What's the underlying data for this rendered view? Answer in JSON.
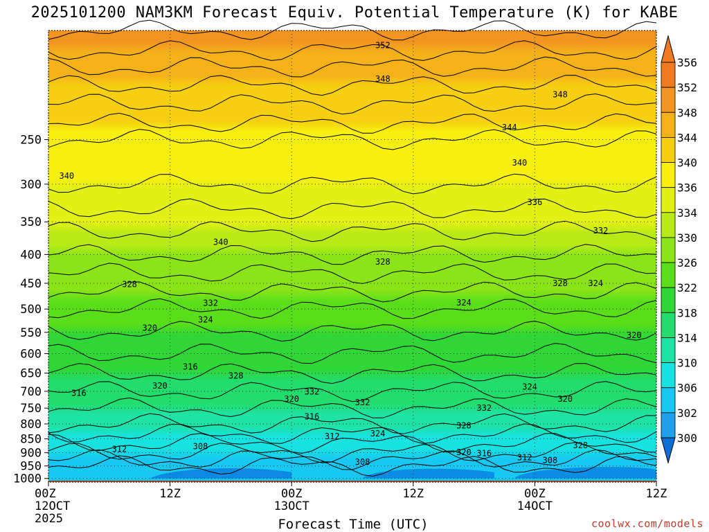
{
  "chart_data": {
    "type": "heatmap",
    "title": "2025101200 NAM3KM Forecast Equiv. Potential Temperature (K) for KABE",
    "xlabel": "Forecast Time (UTC)",
    "credit": "coolwx.com/models",
    "y_axis": {
      "reversed": true,
      "ticks": [
        250,
        300,
        350,
        400,
        450,
        500,
        550,
        600,
        650,
        700,
        750,
        800,
        850,
        900,
        950,
        1000
      ],
      "ylim": [
        1015,
        160
      ]
    },
    "x_axis": {
      "unit": "forecast hour",
      "xlim": [
        0,
        60
      ],
      "ticks": [
        {
          "hour": 0,
          "line1": "00Z",
          "line2": "12OCT",
          "line3": "2025"
        },
        {
          "hour": 12,
          "line1": "12Z",
          "line2": "",
          "line3": ""
        },
        {
          "hour": 24,
          "line1": "00Z",
          "line2": "13OCT",
          "line3": ""
        },
        {
          "hour": 36,
          "line1": "12Z",
          "line2": "",
          "line3": ""
        },
        {
          "hour": 48,
          "line1": "00Z",
          "line2": "14OCT",
          "line3": ""
        },
        {
          "hour": 60,
          "line1": "12Z",
          "line2": "",
          "line3": ""
        }
      ]
    },
    "grid": true,
    "colorbar": {
      "levels": [
        300,
        302,
        306,
        310,
        314,
        318,
        322,
        326,
        330,
        334,
        336,
        340,
        344,
        348,
        352,
        356
      ],
      "colors": [
        "#0a6fd6",
        "#1ea0ea",
        "#18c8f2",
        "#16e2df",
        "#1ee3a4",
        "#22dc6c",
        "#30d636",
        "#5ade1a",
        "#8ae417",
        "#b8ea17",
        "#e2f014",
        "#f7f00e",
        "#f6d010",
        "#f4b218",
        "#f29420",
        "#ee7a22"
      ],
      "extend": "both"
    },
    "theta_e_profile": [
      {
        "p": 160,
        "theta_e": 354
      },
      {
        "p": 250,
        "theta_e": 342
      },
      {
        "p": 300,
        "theta_e": 340
      },
      {
        "p": 400,
        "theta_e": 334
      },
      {
        "p": 500,
        "theta_e": 328
      },
      {
        "p": 600,
        "theta_e": 324
      },
      {
        "p": 700,
        "theta_e": 320
      },
      {
        "p": 800,
        "theta_e": 316
      },
      {
        "p": 900,
        "theta_e": 310
      },
      {
        "p": 950,
        "theta_e": 306
      },
      {
        "p": 1000,
        "theta_e": 308
      }
    ],
    "contour_labels": [
      {
        "text": "352",
        "hour": 33,
        "p": 170
      },
      {
        "text": "348",
        "hour": 33,
        "p": 195
      },
      {
        "text": "348",
        "hour": 50.5,
        "p": 208
      },
      {
        "text": "344",
        "hour": 45.5,
        "p": 238
      },
      {
        "text": "340",
        "hour": 1.8,
        "p": 290
      },
      {
        "text": "340",
        "hour": 46.5,
        "p": 275
      },
      {
        "text": "336",
        "hour": 48,
        "p": 323
      },
      {
        "text": "340",
        "hour": 17,
        "p": 380
      },
      {
        "text": "332",
        "hour": 54.5,
        "p": 363
      },
      {
        "text": "328",
        "hour": 33,
        "p": 412
      },
      {
        "text": "328",
        "hour": 8,
        "p": 452
      },
      {
        "text": "328",
        "hour": 50.5,
        "p": 450
      },
      {
        "text": "324",
        "hour": 54,
        "p": 450
      },
      {
        "text": "332",
        "hour": 16,
        "p": 488
      },
      {
        "text": "324",
        "hour": 41,
        "p": 487
      },
      {
        "text": "324",
        "hour": 15.5,
        "p": 522
      },
      {
        "text": "320",
        "hour": 10,
        "p": 540
      },
      {
        "text": "320",
        "hour": 57.8,
        "p": 557
      },
      {
        "text": "316",
        "hour": 14,
        "p": 633
      },
      {
        "text": "328",
        "hour": 18.5,
        "p": 657
      },
      {
        "text": "320",
        "hour": 11,
        "p": 685
      },
      {
        "text": "324",
        "hour": 47.5,
        "p": 687
      },
      {
        "text": "332",
        "hour": 26,
        "p": 701
      },
      {
        "text": "316",
        "hour": 3,
        "p": 705
      },
      {
        "text": "320",
        "hour": 24,
        "p": 722
      },
      {
        "text": "320",
        "hour": 51,
        "p": 722
      },
      {
        "text": "332",
        "hour": 31,
        "p": 733
      },
      {
        "text": "332",
        "hour": 43,
        "p": 750
      },
      {
        "text": "316",
        "hour": 26,
        "p": 777
      },
      {
        "text": "328",
        "hour": 41,
        "p": 806
      },
      {
        "text": "324",
        "hour": 32.5,
        "p": 832
      },
      {
        "text": "312",
        "hour": 28,
        "p": 842
      },
      {
        "text": "308",
        "hour": 15,
        "p": 877
      },
      {
        "text": "312",
        "hour": 7,
        "p": 887
      },
      {
        "text": "328",
        "hour": 52.5,
        "p": 873
      },
      {
        "text": "320",
        "hour": 41,
        "p": 898
      },
      {
        "text": "316",
        "hour": 43,
        "p": 902
      },
      {
        "text": "312",
        "hour": 47,
        "p": 918
      },
      {
        "text": "308",
        "hour": 49.5,
        "p": 928
      },
      {
        "text": "308",
        "hour": 31,
        "p": 935
      }
    ]
  }
}
